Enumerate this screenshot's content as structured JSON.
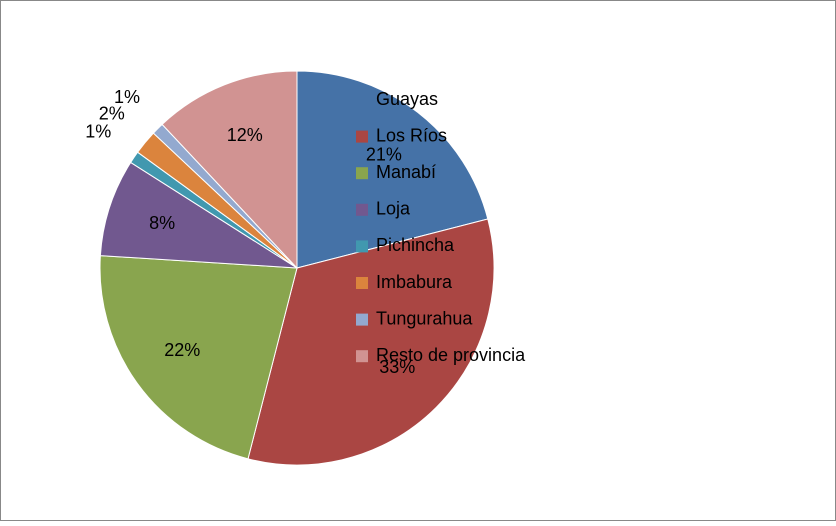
{
  "chart_data": {
    "type": "pie",
    "categories": [
      "Guayas",
      "Los Ríos",
      "Manabí",
      "Loja",
      "Pichincha",
      "Imbabura",
      "Tungurahua",
      "Resto de provincia"
    ],
    "values": [
      21,
      33,
      22,
      8,
      1,
      2,
      1,
      12
    ],
    "value_labels": [
      "21%",
      "33%",
      "22%",
      "8%",
      "1%",
      "2%",
      "1%",
      "12%"
    ],
    "colors": [
      "#4572a7",
      "#aa4643",
      "#89a54e",
      "#71588f",
      "#4198af",
      "#db843d",
      "#93a9cf",
      "#d19392"
    ],
    "legend": "right"
  }
}
